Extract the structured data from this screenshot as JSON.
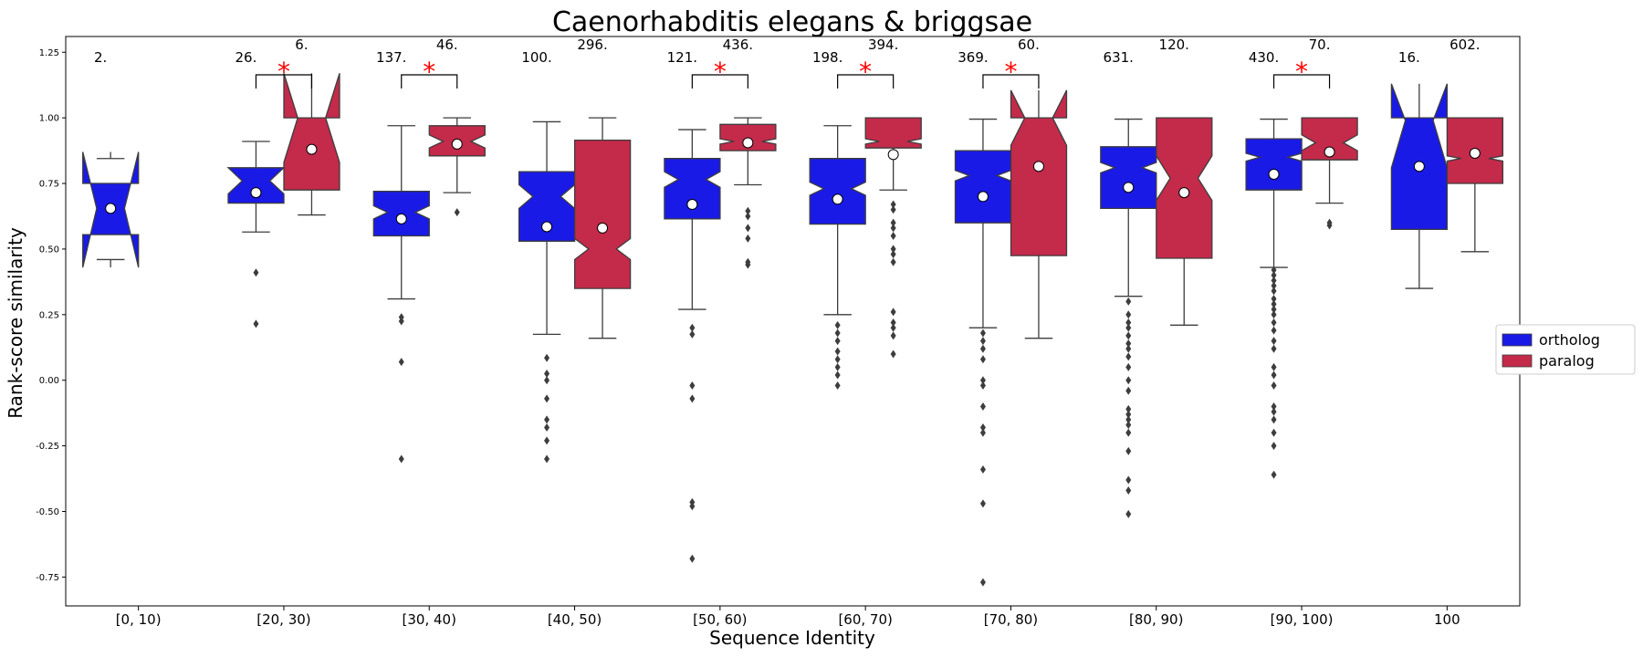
{
  "chart_data": {
    "type": "boxplot",
    "title": "Caenorhabditis elegans & briggsae",
    "xlabel": "Sequence Identity",
    "ylabel": "Rank-score similarity",
    "categories": [
      "[0, 10)",
      "[20, 30)",
      "[30, 40)",
      "[40, 50)",
      "[50, 60)",
      "[60, 70)",
      "[70, 80)",
      "[80, 90)",
      "[90, 100)",
      "100"
    ],
    "y_ticks": [
      "-0.75",
      "-0.50",
      "-0.25",
      "0.00",
      "0.25",
      "0.50",
      "0.75",
      "1.00",
      "1.25"
    ],
    "y_tick_values": [
      -0.75,
      -0.5,
      -0.25,
      0.0,
      0.25,
      0.5,
      0.75,
      1.0,
      1.25
    ],
    "ylim": [
      -0.86,
      1.31
    ],
    "legend": {
      "placement": "right",
      "entries": [
        "ortholog",
        "paralog"
      ]
    },
    "colors": {
      "ortholog": "#1a1ae6",
      "paralog": "#c42a4a",
      "significance": "#ff0000",
      "edge": "#3d3d3d"
    },
    "significance_marker": "*",
    "series": [
      {
        "name": "ortholog",
        "boxes": [
          {
            "category": "[0, 10)",
            "n_label": "2.",
            "whislo": 0.46,
            "q1": 0.555,
            "med": 0.655,
            "q3": 0.75,
            "whishi": 0.845,
            "notch_lo": 0.43,
            "notch_hi": 0.87,
            "mean": 0.655,
            "fliers": []
          },
          {
            "category": "[20, 30)",
            "n_label": "26.",
            "whislo": 0.565,
            "q1": 0.675,
            "med": 0.76,
            "q3": 0.81,
            "whishi": 0.91,
            "notch_lo": 0.71,
            "notch_hi": 0.81,
            "mean": 0.715,
            "fliers": [
              0.41,
              0.215
            ]
          },
          {
            "category": "[30, 40)",
            "n_label": "137.",
            "whislo": 0.31,
            "q1": 0.55,
            "med": 0.64,
            "q3": 0.72,
            "whishi": 0.97,
            "notch_lo": 0.615,
            "notch_hi": 0.665,
            "mean": 0.615,
            "fliers": [
              0.24,
              0.225,
              0.07,
              -0.3
            ]
          },
          {
            "category": "[40, 50)",
            "n_label": "100.",
            "whislo": 0.175,
            "q1": 0.53,
            "med": 0.7,
            "q3": 0.795,
            "whishi": 0.985,
            "notch_lo": 0.655,
            "notch_hi": 0.745,
            "mean": 0.585,
            "fliers": [
              0.085,
              0.025,
              0.0,
              -0.07,
              -0.15,
              -0.18,
              -0.23,
              -0.3
            ]
          },
          {
            "category": "[50, 60)",
            "n_label": "121.",
            "whislo": 0.27,
            "q1": 0.615,
            "med": 0.765,
            "q3": 0.845,
            "whishi": 0.955,
            "notch_lo": 0.735,
            "notch_hi": 0.795,
            "mean": 0.67,
            "fliers": [
              0.2,
              0.175,
              -0.02,
              -0.07,
              -0.465,
              -0.48,
              -0.68
            ]
          },
          {
            "category": "[60, 70)",
            "n_label": "198.",
            "whislo": 0.25,
            "q1": 0.595,
            "med": 0.73,
            "q3": 0.845,
            "whishi": 0.97,
            "notch_lo": 0.705,
            "notch_hi": 0.755,
            "mean": 0.69,
            "fliers": [
              0.21,
              0.18,
              0.15,
              0.11,
              0.08,
              0.05,
              0.02,
              -0.02
            ]
          },
          {
            "category": "[70, 80)",
            "n_label": "369.",
            "whislo": 0.2,
            "q1": 0.6,
            "med": 0.78,
            "q3": 0.875,
            "whishi": 0.995,
            "notch_lo": 0.76,
            "notch_hi": 0.8,
            "mean": 0.7,
            "fliers": [
              0.18,
              0.15,
              0.12,
              0.08,
              0.0,
              -0.02,
              -0.1,
              -0.18,
              -0.2,
              -0.34,
              -0.47,
              -0.77
            ]
          },
          {
            "category": "[80, 90)",
            "n_label": "631.",
            "whislo": 0.32,
            "q1": 0.655,
            "med": 0.81,
            "q3": 0.89,
            "whishi": 0.995,
            "notch_lo": 0.79,
            "notch_hi": 0.83,
            "mean": 0.735,
            "fliers": [
              0.3,
              0.25,
              0.22,
              0.2,
              0.17,
              0.14,
              0.12,
              0.09,
              0.05,
              0.0,
              -0.04,
              -0.11,
              -0.13,
              -0.15,
              -0.17,
              -0.2,
              -0.27,
              -0.38,
              -0.42,
              -0.51
            ]
          },
          {
            "category": "[90, 100)",
            "n_label": "430.",
            "whislo": 0.43,
            "q1": 0.725,
            "med": 0.85,
            "q3": 0.92,
            "whishi": 0.995,
            "notch_lo": 0.835,
            "notch_hi": 0.865,
            "mean": 0.785,
            "fliers": [
              0.42,
              0.4,
              0.38,
              0.36,
              0.34,
              0.31,
              0.29,
              0.27,
              0.25,
              0.22,
              0.19,
              0.15,
              0.12,
              0.05,
              0.02,
              -0.02,
              -0.1,
              -0.12,
              -0.15,
              -0.2,
              -0.25,
              -0.36
            ]
          },
          {
            "category": "100",
            "n_label": "16.",
            "whislo": 0.35,
            "q1": 0.575,
            "med": 0.99,
            "q3": 1.0,
            "whishi": 1.0,
            "notch_lo": 0.81,
            "notch_hi": 1.13,
            "mean": 0.815,
            "fliers": []
          }
        ]
      },
      {
        "name": "paralog",
        "boxes": [
          {
            "category": "[0, 10)",
            "n_label": "",
            "empty": true
          },
          {
            "category": "[20, 30)",
            "n_label": "6.",
            "whislo": 0.63,
            "q1": 0.725,
            "med": 1.0,
            "q3": 1.0,
            "whishi": 1.0,
            "notch_lo": 0.83,
            "notch_hi": 1.17,
            "mean": 0.88,
            "fliers": []
          },
          {
            "category": "[30, 40)",
            "n_label": "46.",
            "whislo": 0.715,
            "q1": 0.855,
            "med": 0.91,
            "q3": 0.97,
            "whishi": 1.0,
            "notch_lo": 0.885,
            "notch_hi": 0.935,
            "mean": 0.9,
            "fliers": [
              0.64
            ]
          },
          {
            "category": "[40, 50)",
            "n_label": "296.",
            "whislo": 0.16,
            "q1": 0.35,
            "med": 0.5,
            "q3": 0.915,
            "whishi": 1.0,
            "notch_lo": 0.46,
            "notch_hi": 0.54,
            "mean": 0.58,
            "fliers": []
          },
          {
            "category": "[50, 60)",
            "n_label": "436.",
            "whislo": 0.745,
            "q1": 0.875,
            "med": 0.91,
            "q3": 0.975,
            "whishi": 1.0,
            "notch_lo": 0.9,
            "notch_hi": 0.92,
            "mean": 0.905,
            "fliers": [
              0.645,
              0.625,
              0.58,
              0.54,
              0.45,
              0.44
            ]
          },
          {
            "category": "[60, 70)",
            "n_label": "394.",
            "whislo": 0.725,
            "q1": 0.885,
            "med": 0.91,
            "q3": 1.0,
            "whishi": 1.0,
            "notch_lo": 0.9,
            "notch_hi": 0.92,
            "mean": 0.86,
            "fliers": [
              0.67,
              0.65,
              0.6,
              0.58,
              0.55,
              0.5,
              0.48,
              0.45,
              0.26,
              0.22,
              0.2,
              0.17,
              0.1
            ]
          },
          {
            "category": "[70, 80)",
            "n_label": "60.",
            "whislo": 0.16,
            "q1": 0.475,
            "med": 1.0,
            "q3": 1.0,
            "whishi": 1.0,
            "notch_lo": 0.895,
            "notch_hi": 1.105,
            "mean": 0.815,
            "fliers": []
          },
          {
            "category": "[80, 90)",
            "n_label": "120.",
            "whislo": 0.21,
            "q1": 0.465,
            "med": 0.77,
            "q3": 1.0,
            "whishi": 1.0,
            "notch_lo": 0.685,
            "notch_hi": 0.855,
            "mean": 0.715,
            "fliers": []
          },
          {
            "category": "[90, 100)",
            "n_label": "70.",
            "whislo": 0.675,
            "q1": 0.84,
            "med": 0.905,
            "q3": 1.0,
            "whishi": 1.0,
            "notch_lo": 0.875,
            "notch_hi": 0.935,
            "mean": 0.87,
            "fliers": [
              0.6,
              0.59
            ]
          },
          {
            "category": "100",
            "n_label": "602.",
            "whislo": 0.49,
            "q1": 0.75,
            "med": 0.845,
            "q3": 1.0,
            "whishi": 1.0,
            "notch_lo": 0.835,
            "notch_hi": 0.855,
            "mean": 0.865,
            "fliers": []
          }
        ]
      }
    ],
    "significant_categories": [
      "[20, 30)",
      "[30, 40)",
      "[50, 60)",
      "[60, 70)",
      "[70, 80)",
      "[90, 100)"
    ]
  }
}
